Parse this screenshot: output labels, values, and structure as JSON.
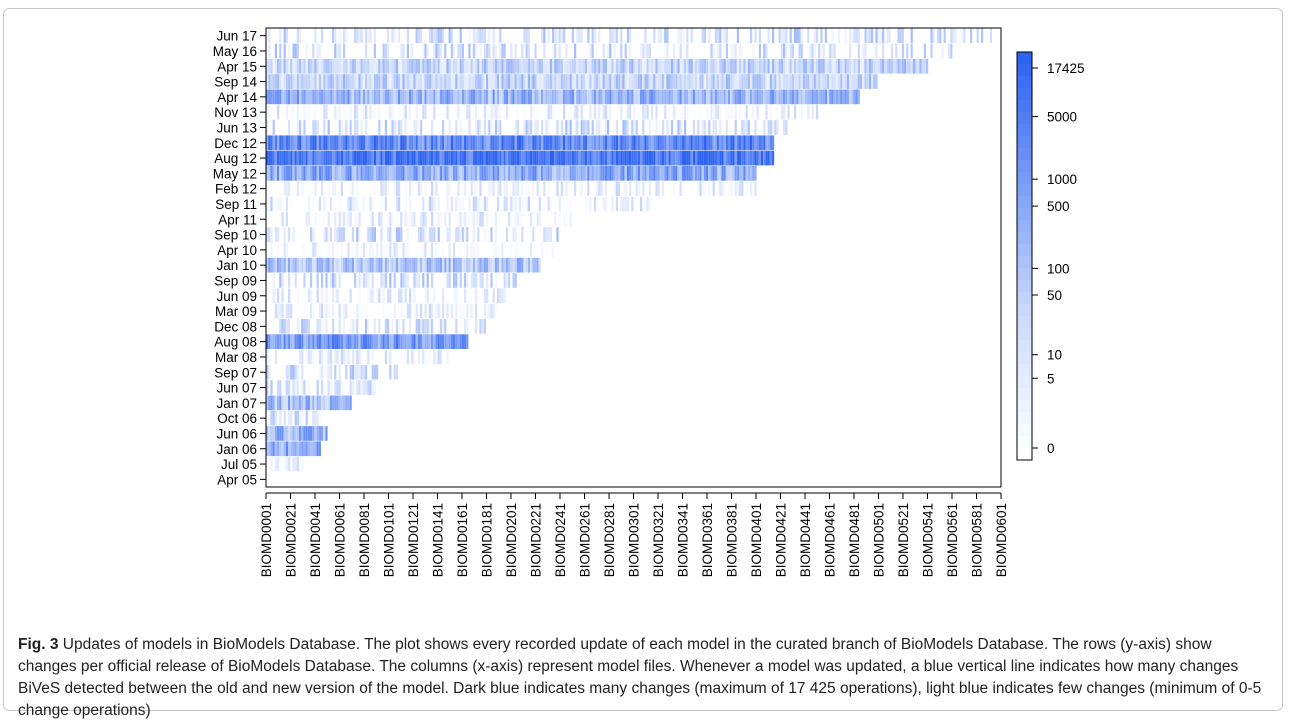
{
  "figure": {
    "label": "Fig. 3",
    "caption": "Updates of models in BioModels Database. The plot shows every recorded update of each model in the curated branch of BioModels Database. The rows (y-axis) show changes per official release of BioModels Database. The columns (x-axis) represent model files. Whenever a model was updated, a blue vertical line indicates how many changes BiVeS detected between the old and new version of the model. Dark blue indicates many changes (maximum of 17 425 operations), light blue indicates few changes (minimum of 0-5 change operations)"
  },
  "colors": {
    "low": "#eef2ff",
    "high": "#2e63f2",
    "axis": "#000000",
    "frame": "#c8c8c8"
  },
  "chart_data": {
    "type": "heatmap",
    "title": "",
    "xlabel": "",
    "ylabel": "",
    "x_tick_labels": [
      "BIOMD0001",
      "BIOMD0021",
      "BIOMD0041",
      "BIOMD0061",
      "BIOMD0081",
      "BIOMD0101",
      "BIOMD0121",
      "BIOMD0141",
      "BIOMD0161",
      "BIOMD0181",
      "BIOMD0201",
      "BIOMD0221",
      "BIOMD0241",
      "BIOMD0261",
      "BIOMD0281",
      "BIOMD0301",
      "BIOMD0321",
      "BIOMD0341",
      "BIOMD0361",
      "BIOMD0381",
      "BIOMD0401",
      "BIOMD0421",
      "BIOMD0441",
      "BIOMD0461",
      "BIOMD0481",
      "BIOMD0501",
      "BIOMD0521",
      "BIOMD0541",
      "BIOMD0561",
      "BIOMD0581",
      "BIOMD0601"
    ],
    "x_range": [
      1,
      601
    ],
    "y_tick_labels": [
      "Apr 05",
      "Jul 05",
      "Jan 06",
      "Jun 06",
      "Oct 06",
      "Jan 07",
      "Jun 07",
      "Sep 07",
      "Mar 08",
      "Aug 08",
      "Dec 08",
      "Mar 09",
      "Jun 09",
      "Sep 09",
      "Jan 10",
      "Apr 10",
      "Sep 10",
      "Apr 11",
      "Sep 11",
      "Feb 12",
      "May 12",
      "Aug 12",
      "Dec 12",
      "Jun 13",
      "Nov 13",
      "Apr 14",
      "Sep 14",
      "Apr 15",
      "May 16",
      "Jun 17"
    ],
    "row_data": [
      {
        "release": "Apr 05",
        "models": 0,
        "level": 0
      },
      {
        "release": "Jul 05",
        "models": 30,
        "level": 0.15
      },
      {
        "release": "Jan 06",
        "models": 45,
        "level": 0.6
      },
      {
        "release": "Jun 06",
        "models": 50,
        "level": 0.55
      },
      {
        "release": "Oct 06",
        "models": 50,
        "level": 0.25
      },
      {
        "release": "Jan 07",
        "models": 70,
        "level": 0.5
      },
      {
        "release": "Jun 07",
        "models": 95,
        "level": 0.25
      },
      {
        "release": "Sep 07",
        "models": 110,
        "level": 0.3
      },
      {
        "release": "Mar 08",
        "models": 150,
        "level": 0.15
      },
      {
        "release": "Aug 08",
        "models": 165,
        "level": 0.7
      },
      {
        "release": "Dec 08",
        "models": 180,
        "level": 0.3
      },
      {
        "release": "Mar 09",
        "models": 190,
        "level": 0.15
      },
      {
        "release": "Jun 09",
        "models": 200,
        "level": 0.15
      },
      {
        "release": "Sep 09",
        "models": 210,
        "level": 0.3
      },
      {
        "release": "Jan 10",
        "models": 225,
        "level": 0.45
      },
      {
        "release": "Apr 10",
        "models": 240,
        "level": 0.1
      },
      {
        "release": "Sep 10",
        "models": 245,
        "level": 0.3
      },
      {
        "release": "Apr 11",
        "models": 250,
        "level": 0.15
      },
      {
        "release": "Sep 11",
        "models": 320,
        "level": 0.2
      },
      {
        "release": "Feb 12",
        "models": 400,
        "level": 0.15
      },
      {
        "release": "May 12",
        "models": 400,
        "level": 0.6
      },
      {
        "release": "Aug 12",
        "models": 415,
        "level": 0.9
      },
      {
        "release": "Dec 12",
        "models": 415,
        "level": 0.8
      },
      {
        "release": "Jun 13",
        "models": 425,
        "level": 0.3
      },
      {
        "release": "Nov 13",
        "models": 450,
        "level": 0.15
      },
      {
        "release": "Apr 14",
        "models": 485,
        "level": 0.55
      },
      {
        "release": "Sep 14",
        "models": 500,
        "level": 0.35
      },
      {
        "release": "Apr 15",
        "models": 540,
        "level": 0.35
      },
      {
        "release": "May 16",
        "models": 560,
        "level": 0.3
      },
      {
        "release": "Jun 17",
        "models": 601,
        "level": 0.3
      }
    ],
    "color_scale": {
      "type": "log",
      "tick_labels": [
        "17425",
        "5000",
        "1000",
        "500",
        "100",
        "50",
        "10",
        "5",
        "0"
      ],
      "tick_values": [
        17425,
        5000,
        1000,
        500,
        100,
        50,
        10,
        5,
        0
      ],
      "max": 17425,
      "min": 0
    },
    "legend": "right",
    "grid": false
  }
}
